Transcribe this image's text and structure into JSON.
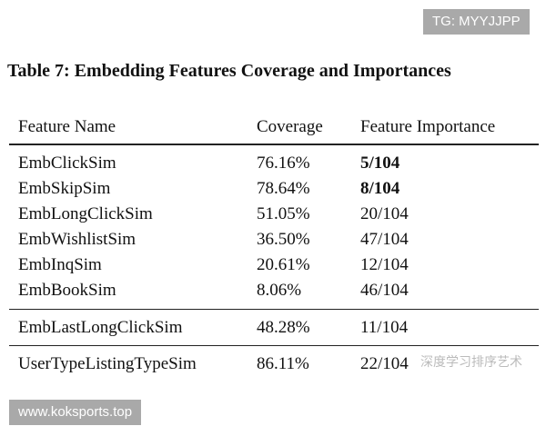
{
  "watermark_top": "TG: MYYJJPP",
  "caption": "Table 7: Embedding Features Coverage and Importances",
  "table": {
    "header": [
      "Feature Name",
      "Coverage",
      "Feature Importance"
    ],
    "rows": [
      [
        "EmbClickSim",
        "76.16%",
        "5/104"
      ],
      [
        "EmbSkipSim",
        "78.64%",
        "8/104"
      ],
      [
        "EmbLongClickSim",
        "51.05%",
        "20/104"
      ],
      [
        "EmbWishlistSim",
        "36.50%",
        "47/104"
      ],
      [
        "EmbInqSim",
        "20.61%",
        "12/104"
      ],
      [
        "EmbBookSim",
        "8.06%",
        "46/104"
      ],
      [
        "EmbLastLongClickSim",
        "48.28%",
        "11/104"
      ],
      [
        "UserTypeListingTypeSim",
        "86.11%",
        "22/104"
      ]
    ]
  },
  "wechat_watermark": "深度学习排序艺术",
  "watermark_bottom": "www.koksports.top"
}
